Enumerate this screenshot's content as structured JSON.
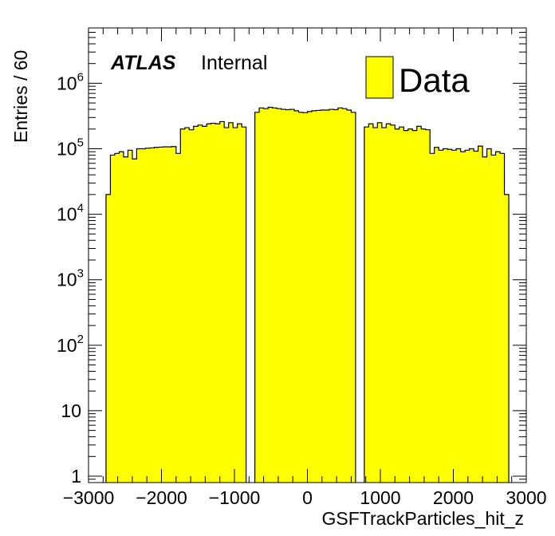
{
  "chart_data": {
    "type": "bar",
    "subtype": "histogram",
    "xlabel": "GSFTrackParticles_hit_z",
    "ylabel": "Entries / 60",
    "xlim": [
      -3000,
      3000
    ],
    "ylim": [
      0.8,
      7000000
    ],
    "yscale": "log",
    "bin_width": 60,
    "x_ticks": [
      {
        "value": -3000,
        "label": "−3000"
      },
      {
        "value": -2000,
        "label": "−2000"
      },
      {
        "value": -1000,
        "label": "−1000"
      },
      {
        "value": 0,
        "label": "0"
      },
      {
        "value": 1000,
        "label": "1000"
      },
      {
        "value": 2000,
        "label": "2000"
      },
      {
        "value": 3000,
        "label": "3000"
      }
    ],
    "y_ticks": [
      {
        "value": 1,
        "base": "1",
        "exp": ""
      },
      {
        "value": 10,
        "base": "10",
        "exp": ""
      },
      {
        "value": 100,
        "base": "10",
        "exp": "2"
      },
      {
        "value": 1000,
        "base": "10",
        "exp": "3"
      },
      {
        "value": 10000,
        "base": "10",
        "exp": "4"
      },
      {
        "value": 100000,
        "base": "10",
        "exp": "5"
      },
      {
        "value": 1000000,
        "base": "10",
        "exp": "6"
      }
    ],
    "series": [
      {
        "name": "Data",
        "color": "#ffff00",
        "bins_left_edges": [
          -2760,
          -2700,
          -2640,
          -2580,
          -2520,
          -2460,
          -2400,
          -2340,
          -2280,
          -2220,
          -2160,
          -2100,
          -2040,
          -1980,
          -1920,
          -1860,
          -1800,
          -1740,
          -1680,
          -1620,
          -1560,
          -1500,
          -1440,
          -1380,
          -1320,
          -1260,
          -1200,
          -1140,
          -1080,
          -1020,
          -960,
          -900,
          -840,
          -780,
          -720,
          -660,
          -600,
          -540,
          -480,
          -420,
          -360,
          -300,
          -240,
          -180,
          -120,
          -60,
          0,
          60,
          120,
          180,
          240,
          300,
          360,
          420,
          480,
          540,
          600,
          660,
          720,
          780,
          840,
          900,
          960,
          1020,
          1080,
          1140,
          1200,
          1260,
          1320,
          1380,
          1440,
          1500,
          1560,
          1620,
          1680,
          1740,
          1800,
          1860,
          1920,
          1980,
          2040,
          2100,
          2160,
          2220,
          2280,
          2340,
          2400,
          2460,
          2520,
          2580,
          2640,
          2700
        ],
        "values": [
          20000,
          80000,
          85000,
          90000,
          75000,
          95000,
          70000,
          100000,
          100000,
          102000,
          103000,
          105000,
          106000,
          107000,
          107000,
          108000,
          85000,
          200000,
          210000,
          195000,
          220000,
          230000,
          220000,
          240000,
          245000,
          240000,
          260000,
          210000,
          250000,
          210000,
          240000,
          215000,
          0,
          0,
          360000,
          420000,
          410000,
          430000,
          420000,
          410000,
          400000,
          395000,
          400000,
          380000,
          360000,
          355000,
          370000,
          380000,
          385000,
          390000,
          390000,
          400000,
          395000,
          420000,
          410000,
          390000,
          360000,
          0,
          0,
          215000,
          240000,
          210000,
          250000,
          210000,
          240000,
          230000,
          200000,
          215000,
          190000,
          200000,
          190000,
          220000,
          200000,
          195000,
          85000,
          105000,
          95000,
          100000,
          98000,
          95000,
          100000,
          90000,
          95000,
          100000,
          92000,
          110000,
          75000,
          100000,
          80000,
          90000,
          85000,
          20000
        ]
      }
    ],
    "legend": {
      "position": "top-right",
      "entries": [
        "Data"
      ]
    },
    "annotations": {
      "atlas": "ATLAS",
      "status": "Internal"
    }
  }
}
